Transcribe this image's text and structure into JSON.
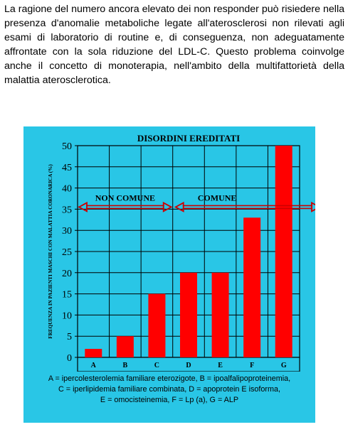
{
  "paragraph": "La ragione del numero ancora elevato dei non responder può risiedere nella presenza d'anomalie metaboliche legate all'aterosclerosi non rilevati agli esami di laboratorio di routine e, di conseguenza, non adeguatamente affrontate con la sola riduzione del LDL-C. Questo problema coinvolge anche il concetto di monoterapia, nell'ambito della multifattorietà della malattia aterosclerotica.",
  "colors": {
    "background": "#29c6e6",
    "bar": "#ff0000",
    "arrow": "#cc0000",
    "grid": "#000000"
  },
  "chart_data": {
    "type": "bar",
    "title": "DISORDINI EREDITATI",
    "ylabel": "FREQUENZA IN PAZIENTI MASCHI CON MALATTIA CORONARICA (%)",
    "xlabel": "",
    "categories": [
      "A",
      "B",
      "C",
      "D",
      "E",
      "F",
      "G"
    ],
    "values": [
      2,
      5,
      15,
      20,
      20,
      33,
      50
    ],
    "ylim": [
      0,
      50
    ],
    "yticks": [
      "0",
      "5",
      "10",
      "15",
      "20",
      "25",
      "30",
      "35",
      "40",
      "45",
      "50"
    ],
    "grid": true,
    "annotations": [
      {
        "text": "NON COMUNE",
        "from_category": "A",
        "to_category": "C",
        "y": 35.5
      },
      {
        "text": "COMUNE",
        "from_category": "D",
        "to_category": "G",
        "y": 35.5
      }
    ]
  },
  "caption": [
    "A = ipercolesterolemia familiare eterozigote, B = ipoalfalipoproteinemia,",
    "C = iperlipidemia familiare combinata,  D =  apoprotein E isoforma,",
    "E = omocisteinemia, F = Lp (a), G = ALP"
  ]
}
